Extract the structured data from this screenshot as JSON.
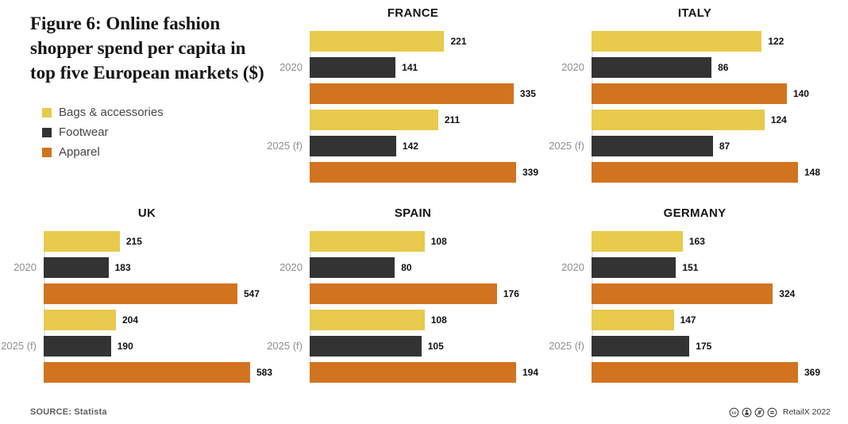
{
  "figure": {
    "title": "Figure 6: Online fashion shopper spend per capita in top five European markets ($)",
    "source_label": "SOURCE: Statista",
    "credit": "RetailX 2022",
    "license_icons": [
      "cc-icon",
      "cc-by-icon",
      "cc-nc-icon",
      "cc-nd-icon"
    ]
  },
  "legend": {
    "items": [
      {
        "label": "Bags & accessories"
      },
      {
        "label": "Footwear"
      },
      {
        "label": "Apparel"
      }
    ]
  },
  "chart_data": {
    "type": "bar",
    "orientation": "horizontal",
    "unit": "$",
    "series": [
      "Bags & accessories",
      "Footwear",
      "Apparel"
    ],
    "colors": [
      "#e8ca4c",
      "#333333",
      "#d2731f"
    ],
    "groups": [
      "2020",
      "2025 (f)"
    ],
    "layout": {
      "per_panel_scale": true,
      "legend_position": "top-left",
      "grid": "off"
    },
    "panels": [
      {
        "country": "FRANCE",
        "groups": [
          {
            "label": "2020",
            "values": [
              221,
              141,
              335
            ]
          },
          {
            "label": "2025 (f)",
            "values": [
              211,
              142,
              339
            ]
          }
        ]
      },
      {
        "country": "ITALY",
        "groups": [
          {
            "label": "2020",
            "values": [
              122,
              86,
              140
            ]
          },
          {
            "label": "2025 (f)",
            "values": [
              124,
              87,
              148
            ]
          }
        ]
      },
      {
        "country": "UK",
        "groups": [
          {
            "label": "2020",
            "values": [
              215,
              183,
              547
            ]
          },
          {
            "label": "2025 (f)",
            "values": [
              204,
              190,
              583
            ]
          }
        ]
      },
      {
        "country": "SPAIN",
        "groups": [
          {
            "label": "2020",
            "values": [
              108,
              80,
              176
            ]
          },
          {
            "label": "2025 (f)",
            "values": [
              108,
              105,
              194
            ]
          }
        ]
      },
      {
        "country": "GERMANY",
        "groups": [
          {
            "label": "2020",
            "values": [
              163,
              151,
              324
            ]
          },
          {
            "label": "2025 (f)",
            "values": [
              147,
              175,
              369
            ]
          }
        ]
      }
    ]
  }
}
